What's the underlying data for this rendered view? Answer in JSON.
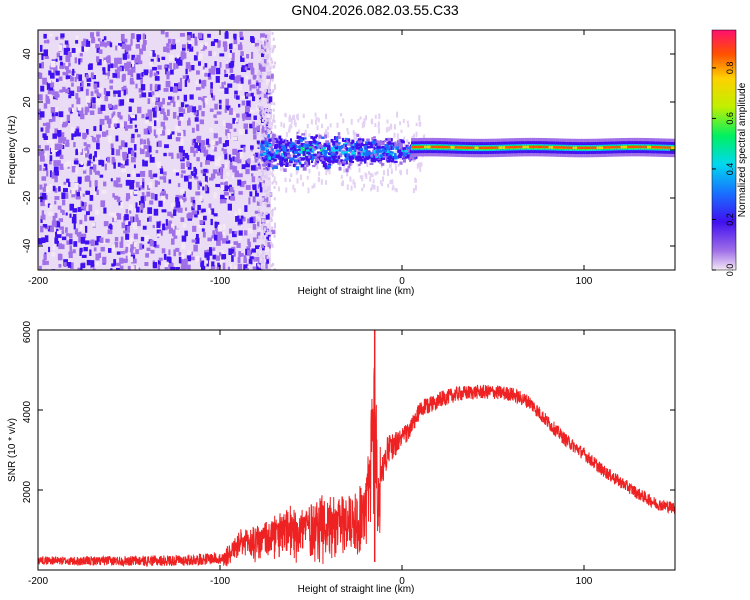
{
  "title": "GN04.2026.082.03.55.C33",
  "chart_data": [
    {
      "type": "heatmap",
      "name": "spectrogram",
      "xlabel": "Height of straight line (km)",
      "ylabel": "Frequency (Hz)",
      "xlim": [
        -200,
        150
      ],
      "ylim": [
        -50,
        50
      ],
      "xticks": [
        -200,
        -100,
        0,
        100
      ],
      "yticks": [
        -40,
        -20,
        0,
        20,
        40
      ],
      "colorbar": {
        "label": "Normalized spectral amplitude",
        "range": [
          0,
          0.95
        ],
        "ticks": [
          0.0,
          0.2,
          0.4,
          0.6,
          0.8
        ],
        "tick_labels": [
          "0.0",
          "0.2",
          "0.4",
          "0.6",
          "0.8"
        ],
        "colormap": [
          "#f4e8f4",
          "#a070e8",
          "#4010f0",
          "#1870ff",
          "#00d8f0",
          "#00f060",
          "#c0f000",
          "#ffd000",
          "#ff5000",
          "#ff1070"
        ]
      },
      "regions": [
        {
          "x_range": [
            -200,
            -72
          ],
          "freq_range": [
            -50,
            50
          ],
          "amplitude": 0.15,
          "description_type": "noise"
        },
        {
          "x_range": [
            -78,
            -25
          ],
          "freq_range": [
            -7,
            7
          ],
          "amplitude": 0.35
        },
        {
          "x_range": [
            -25,
            5
          ],
          "freq_range": [
            -5,
            5
          ],
          "amplitude": 0.3
        },
        {
          "x_range": [
            5,
            150
          ],
          "freq_range": [
            -1,
            2
          ],
          "amplitude": 0.85
        }
      ]
    },
    {
      "type": "line",
      "name": "snr",
      "xlabel": "Height of straight line (km)",
      "ylabel": "SNR (10 * v/v)",
      "xlim": [
        -200,
        150
      ],
      "ylim": [
        0,
        6000
      ],
      "xticks": [
        -200,
        -100,
        0,
        100
      ],
      "yticks": [
        2000,
        4000,
        6000
      ],
      "color": "#ee2222",
      "series": [
        {
          "name": "SNR",
          "x": [
            -200,
            -180,
            -160,
            -140,
            -120,
            -100,
            -95,
            -90,
            -80,
            -70,
            -60,
            -50,
            -40,
            -30,
            -25,
            -20,
            -18,
            -15,
            -13,
            -10,
            -8,
            -5,
            0,
            5,
            10,
            20,
            30,
            40,
            50,
            60,
            70,
            80,
            90,
            100,
            110,
            120,
            130,
            140,
            150
          ],
          "y": [
            250,
            220,
            230,
            230,
            240,
            300,
            700,
            900,
            1100,
            1300,
            1500,
            1700,
            1800,
            1900,
            2000,
            2200,
            3200,
            6000,
            2500,
            2600,
            3000,
            3100,
            3300,
            3550,
            4000,
            4250,
            4400,
            4450,
            4450,
            4400,
            4200,
            3700,
            3250,
            2900,
            2500,
            2200,
            1900,
            1650,
            1550
          ]
        }
      ],
      "noise_envelope": {
        "x": [
          -200,
          -100,
          -90,
          -80,
          -70,
          -60,
          -50,
          -40,
          -30,
          -20,
          -15,
          -10,
          0,
          20,
          40,
          60,
          80,
          100,
          120,
          150
        ],
        "amplitude": [
          100,
          150,
          600,
          800,
          900,
          1000,
          1100,
          1200,
          1300,
          1400,
          800,
          400,
          250,
          200,
          180,
          180,
          170,
          160,
          150,
          150
        ]
      }
    }
  ]
}
